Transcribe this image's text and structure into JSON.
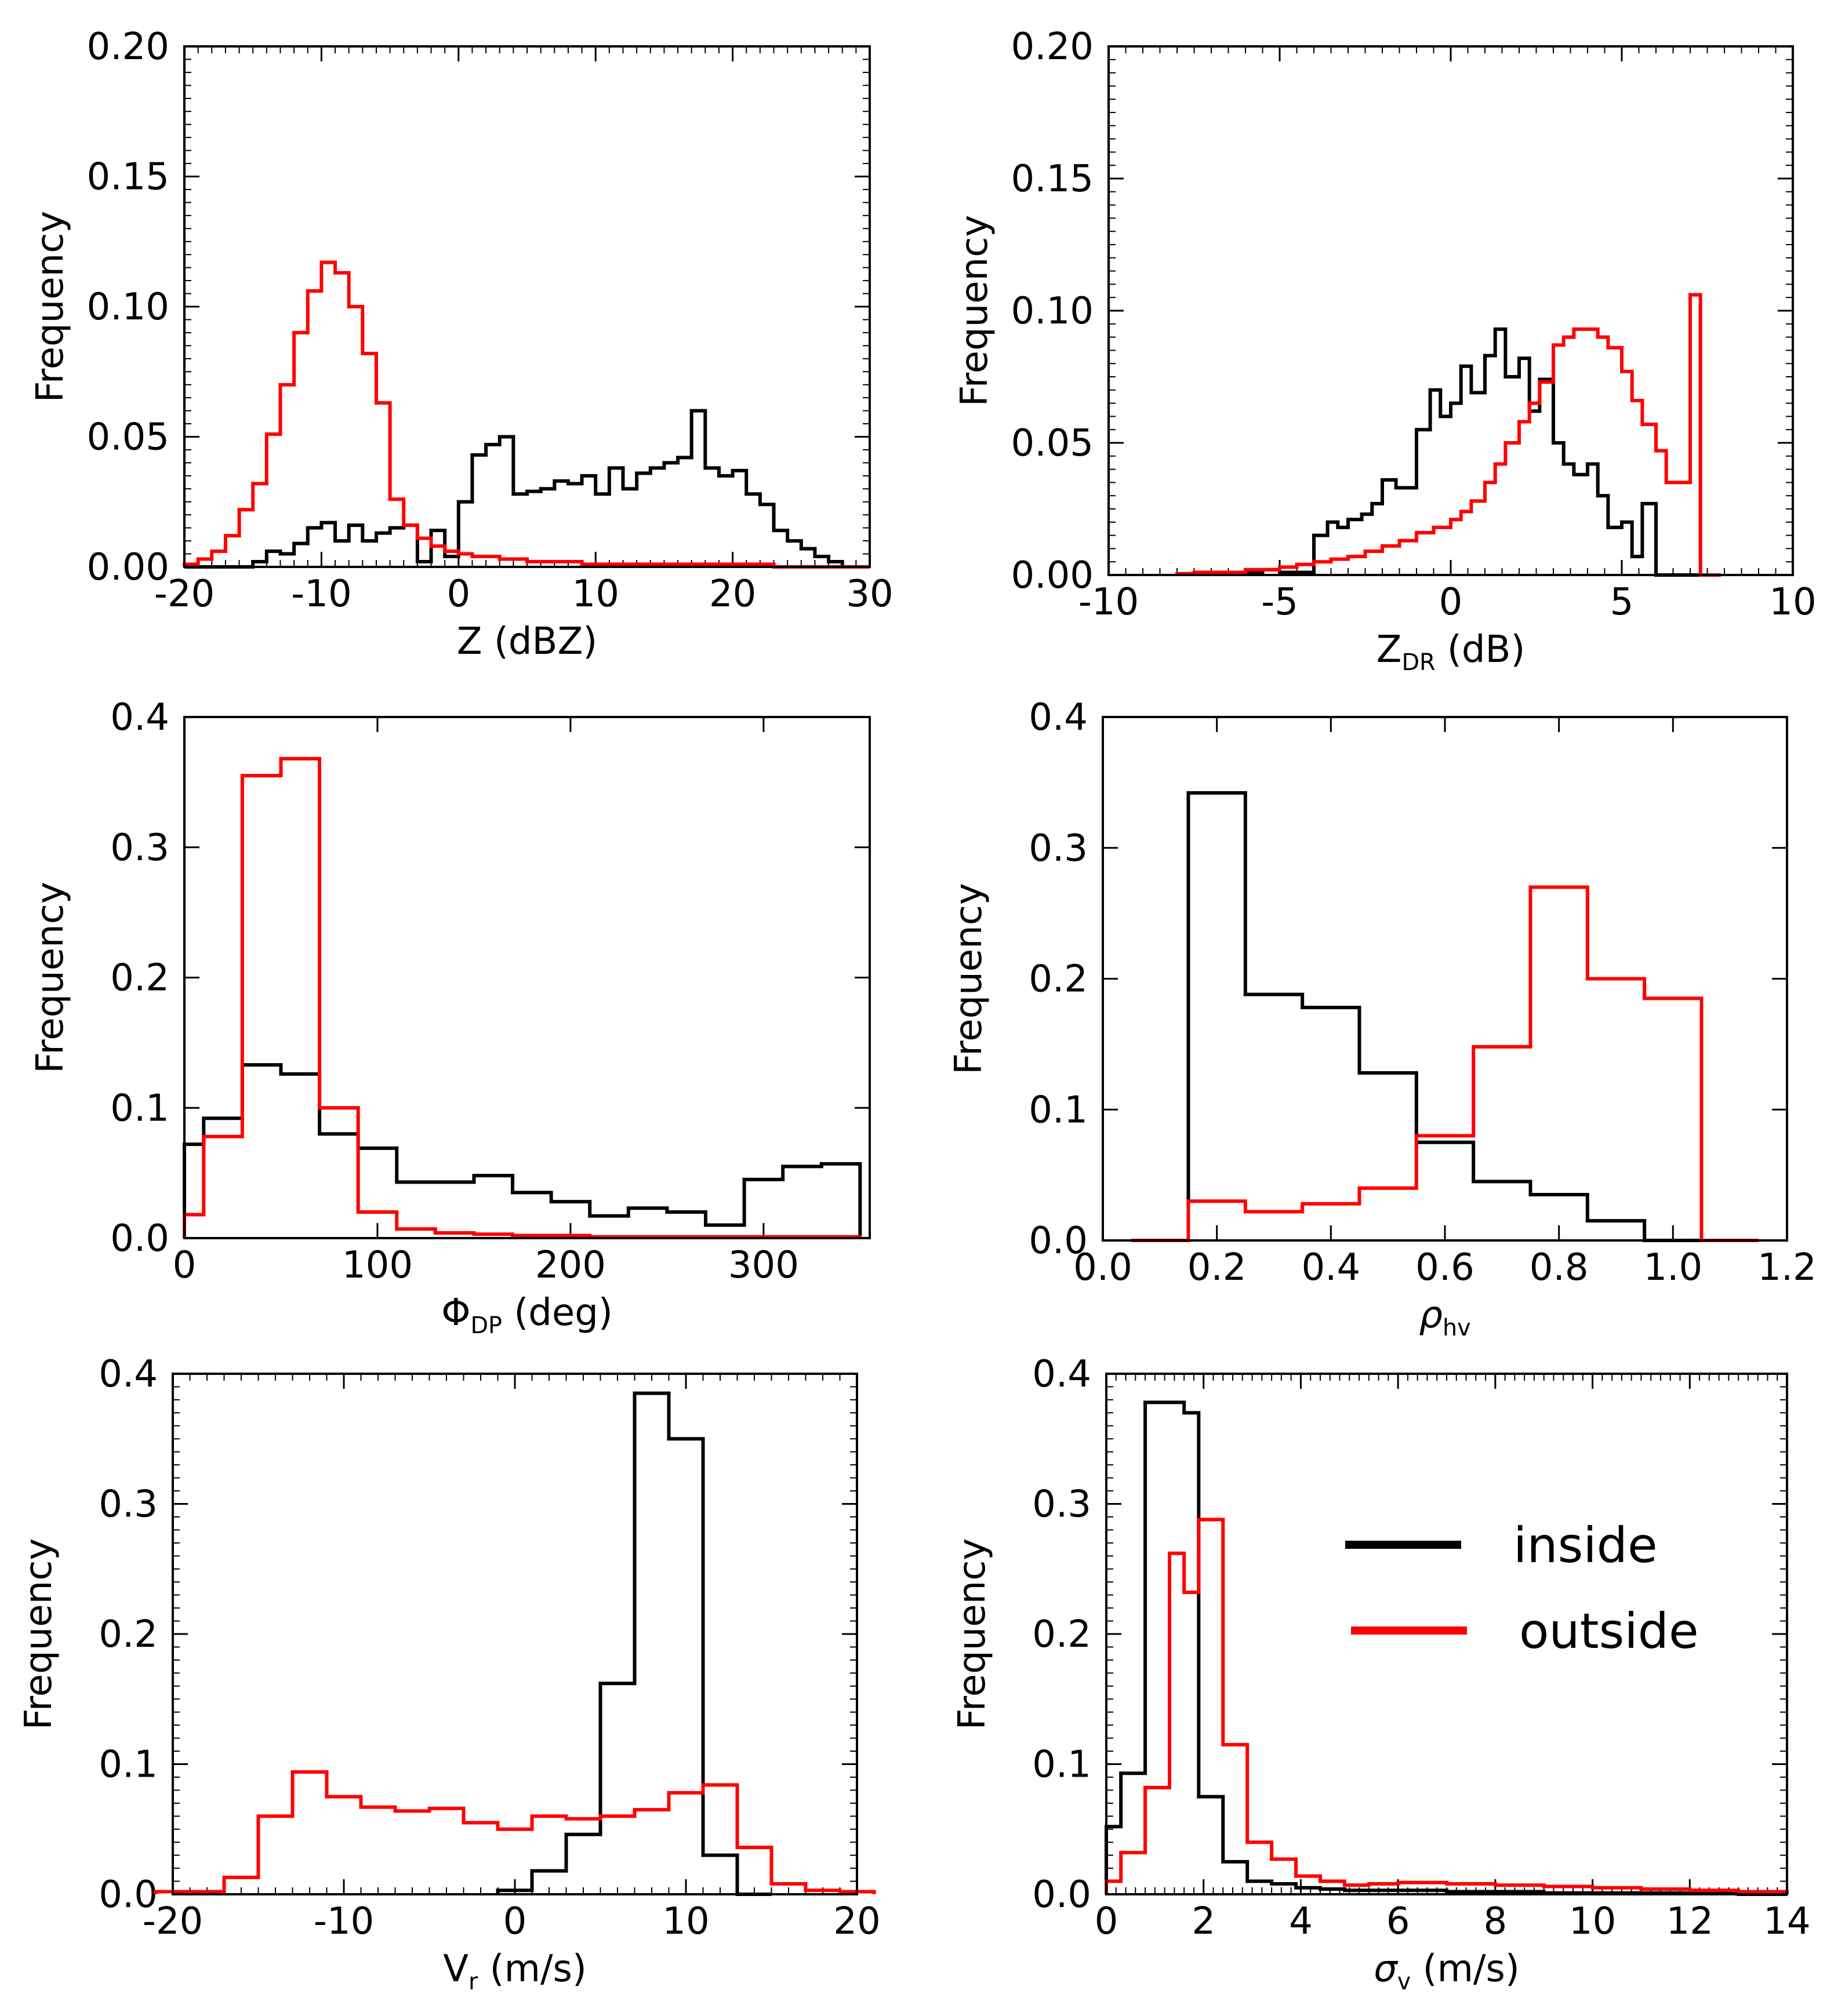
{
  "colors": {
    "inside": "#000000",
    "outside": "#ff0000"
  },
  "legend": {
    "inside_label": "inside",
    "outside_label": "outside",
    "position": "upper-right of bottom-right panel"
  },
  "chart_data": [
    {
      "id": "z",
      "type": "step-histogram",
      "xlabel": {
        "main": "Z (dBZ)",
        "sub": ""
      },
      "ylabel": "Frequency",
      "xlim": [
        -20,
        30
      ],
      "ylim": [
        0,
        0.2
      ],
      "xticks": [
        -20,
        -10,
        0,
        10,
        20,
        30
      ],
      "yticks": [
        0.0,
        0.05,
        0.1,
        0.15,
        0.2
      ],
      "ytick_labels": [
        "0.00",
        "0.05",
        "0.10",
        "0.15",
        "0.20"
      ],
      "minor_ticks": true,
      "series": [
        {
          "name": "inside",
          "color": "#000000",
          "edges": [
            -20,
            -19,
            -18,
            -17,
            -16,
            -15,
            -14,
            -13,
            -12,
            -11,
            -10,
            -9,
            -8,
            -7,
            -6,
            -5,
            -4,
            -3,
            -2,
            -1,
            0,
            1,
            2,
            3,
            4,
            5,
            6,
            7,
            8,
            9,
            10,
            11,
            12,
            13,
            14,
            15,
            16,
            17,
            18,
            19,
            20,
            21,
            22,
            23,
            24,
            25,
            26,
            27,
            28,
            29,
            30
          ],
          "values": [
            0,
            0,
            0,
            0,
            0,
            0.002,
            0.006,
            0.005,
            0.009,
            0.015,
            0.017,
            0.01,
            0.016,
            0.01,
            0.013,
            0.015,
            0.016,
            0.002,
            0.014,
            0.004,
            0.025,
            0.043,
            0.047,
            0.05,
            0.028,
            0.029,
            0.03,
            0.033,
            0.032,
            0.035,
            0.028,
            0.038,
            0.03,
            0.036,
            0.038,
            0.04,
            0.042,
            0.06,
            0.038,
            0.035,
            0.037,
            0.028,
            0.024,
            0.014,
            0.01,
            0.007,
            0.004,
            0.002,
            0,
            0,
            0
          ]
        },
        {
          "name": "outside",
          "color": "#ff0000",
          "edges": [
            -20,
            -19,
            -18,
            -17,
            -16,
            -15,
            -14,
            -13,
            -12,
            -11,
            -10,
            -9,
            -8,
            -7,
            -6,
            -5,
            -4,
            -3,
            -2,
            -1,
            0,
            1,
            2,
            3,
            4,
            5,
            6,
            7,
            8,
            9,
            10,
            11,
            12,
            13,
            14,
            15,
            16,
            17,
            18,
            19,
            20,
            21,
            22,
            23,
            24,
            25,
            26,
            27,
            28,
            29,
            30
          ],
          "values": [
            0.001,
            0.003,
            0.006,
            0.012,
            0.022,
            0.032,
            0.051,
            0.07,
            0.09,
            0.106,
            0.117,
            0.113,
            0.1,
            0.082,
            0.063,
            0.026,
            0.016,
            0.011,
            0.008,
            0.006,
            0.005,
            0.004,
            0.004,
            0.003,
            0.003,
            0.002,
            0.002,
            0.002,
            0.002,
            0.001,
            0.001,
            0.001,
            0.001,
            0.001,
            0.001,
            0.001,
            0.001,
            0.001,
            0.001,
            0.001,
            0.001,
            0.001,
            0.001,
            0,
            0,
            0,
            0,
            0,
            0,
            0
          ]
        }
      ]
    },
    {
      "id": "zdr",
      "type": "step-histogram",
      "xlabel": {
        "main": "Z",
        "sub": "DR",
        "after": " (dB)"
      },
      "ylabel": "Frequency",
      "xlim": [
        -10,
        10
      ],
      "ylim": [
        0,
        0.2
      ],
      "xticks": [
        -10,
        -5,
        0,
        5,
        10
      ],
      "yticks": [
        0.0,
        0.05,
        0.1,
        0.15,
        0.2
      ],
      "ytick_labels": [
        "0.00",
        "0.05",
        "0.10",
        "0.15",
        "0.20"
      ],
      "minor_ticks": true,
      "series": [
        {
          "name": "inside",
          "color": "#000000",
          "edges": [
            -6,
            -5.5,
            -5,
            -4.6,
            -4.3,
            -4,
            -3.6,
            -3.3,
            -3,
            -2.6,
            -2.3,
            -2,
            -1.6,
            -1.3,
            -1,
            -0.6,
            -0.3,
            0,
            0.3,
            0.6,
            1,
            1.3,
            1.6,
            2,
            2.3,
            2.6,
            3,
            3.3,
            3.6,
            4,
            4.3,
            4.6,
            5,
            5.3,
            5.6,
            6,
            6.3,
            6.6,
            7,
            7.3,
            7.6
          ],
          "values": [
            0.001,
            0.002,
            0.001,
            0.001,
            0.001,
            0.015,
            0.02,
            0.018,
            0.021,
            0.023,
            0.027,
            0.036,
            0.033,
            0.033,
            0.055,
            0.07,
            0.06,
            0.065,
            0.079,
            0.069,
            0.083,
            0.093,
            0.075,
            0.082,
            0.062,
            0.074,
            0.05,
            0.042,
            0.038,
            0.042,
            0.03,
            0.018,
            0.02,
            0.007,
            0.027,
            0.0,
            0,
            0,
            0,
            0
          ]
        },
        {
          "name": "outside",
          "color": "#ff0000",
          "edges": [
            -8,
            -7.5,
            -7,
            -6.5,
            -6,
            -5.5,
            -5,
            -4.5,
            -4,
            -3.5,
            -3,
            -2.5,
            -2,
            -1.5,
            -1,
            -0.5,
            0,
            0.3,
            0.6,
            1,
            1.3,
            1.6,
            2,
            2.3,
            2.6,
            3,
            3.3,
            3.6,
            4,
            4.3,
            4.6,
            5,
            5.3,
            5.6,
            6,
            6.3,
            6.6,
            7,
            7.3,
            7.6,
            7.9
          ],
          "values": [
            0.0005,
            0.001,
            0.001,
            0.001,
            0.002,
            0.002,
            0.003,
            0.004,
            0.005,
            0.006,
            0.007,
            0.009,
            0.011,
            0.013,
            0.016,
            0.018,
            0.021,
            0.024,
            0.028,
            0.035,
            0.042,
            0.05,
            0.058,
            0.065,
            0.073,
            0.087,
            0.09,
            0.093,
            0.093,
            0.09,
            0.086,
            0.077,
            0.066,
            0.057,
            0.047,
            0.035,
            0.035,
            0.106,
            0.0,
            0
          ]
        }
      ]
    },
    {
      "id": "phidp",
      "type": "step-histogram",
      "xlabel": {
        "main": "Φ",
        "sub": "DP",
        "after": " (deg)"
      },
      "ylabel": "Frequency",
      "xlim": [
        0,
        355
      ],
      "ylim": [
        0,
        0.4
      ],
      "xticks": [
        0,
        100,
        200,
        300
      ],
      "yticks": [
        0.0,
        0.1,
        0.2,
        0.3,
        0.4
      ],
      "ytick_labels": [
        "0.0",
        "0.1",
        "0.2",
        "0.3",
        "0.4"
      ],
      "minor_ticks": false,
      "series": [
        {
          "name": "inside",
          "color": "#000000",
          "edges": [
            0,
            10,
            30,
            50,
            70,
            90,
            110,
            130,
            150,
            170,
            190,
            210,
            230,
            250,
            270,
            290,
            310,
            330,
            350
          ],
          "values": [
            0.072,
            0.092,
            0.133,
            0.126,
            0.08,
            0.069,
            0.043,
            0.043,
            0.048,
            0.035,
            0.028,
            0.017,
            0.023,
            0.02,
            0.01,
            0.045,
            0.055,
            0.057
          ]
        },
        {
          "name": "outside",
          "color": "#ff0000",
          "edges": [
            0,
            10,
            30,
            50,
            70,
            90,
            110,
            130,
            150,
            170,
            190,
            210,
            230,
            250,
            270,
            290,
            310,
            330,
            350
          ],
          "values": [
            0.018,
            0.078,
            0.355,
            0.368,
            0.1,
            0.02,
            0.007,
            0.004,
            0.003,
            0.002,
            0.002,
            0.001,
            0.001,
            0.001,
            0.001,
            0.001,
            0.001,
            0.001
          ]
        }
      ]
    },
    {
      "id": "rhohv",
      "type": "step-histogram",
      "xlabel": {
        "main": "ρ",
        "sub": "hv",
        "italic": true,
        "after": ""
      },
      "ylabel": "Frequency",
      "xlim": [
        0,
        1.2
      ],
      "ylim": [
        0,
        0.4
      ],
      "xticks": [
        0.0,
        0.2,
        0.4,
        0.6,
        0.8,
        1.0,
        1.2
      ],
      "xtick_labels": [
        "0.0",
        "0.2",
        "0.4",
        "0.6",
        "0.8",
        "1.0",
        "1.2"
      ],
      "yticks": [
        0.0,
        0.1,
        0.2,
        0.3,
        0.4
      ],
      "ytick_labels": [
        "0.0",
        "0.1",
        "0.2",
        "0.3",
        "0.4"
      ],
      "minor_ticks": false,
      "series": [
        {
          "name": "inside",
          "color": "#000000",
          "edges": [
            0.15,
            0.25,
            0.35,
            0.45,
            0.55,
            0.65,
            0.75,
            0.85,
            0.95,
            1.05
          ],
          "values": [
            0.342,
            0.188,
            0.178,
            0.128,
            0.075,
            0.045,
            0.035,
            0.015,
            0.0
          ]
        },
        {
          "name": "outside",
          "color": "#ff0000",
          "edges": [
            0.05,
            0.15,
            0.25,
            0.35,
            0.45,
            0.55,
            0.65,
            0.75,
            0.85,
            0.95,
            1.05,
            1.15
          ],
          "values": [
            0.0,
            0.03,
            0.022,
            0.028,
            0.04,
            0.08,
            0.148,
            0.27,
            0.2,
            0.185,
            0.0
          ]
        }
      ]
    },
    {
      "id": "vr",
      "type": "step-histogram",
      "xlabel": {
        "main": "V",
        "sub": "r",
        "after": " (m/s)"
      },
      "ylabel": "Frequency",
      "xlim": [
        -20,
        20
      ],
      "ylim": [
        0,
        0.4
      ],
      "xticks": [
        -20,
        -10,
        0,
        10,
        20
      ],
      "yticks": [
        0.0,
        0.1,
        0.2,
        0.3,
        0.4
      ],
      "ytick_labels": [
        "0.0",
        "0.1",
        "0.2",
        "0.3",
        "0.4"
      ],
      "minor_ticks": true,
      "series": [
        {
          "name": "inside",
          "color": "#000000",
          "edges": [
            -1,
            1,
            3,
            5,
            7,
            9,
            11,
            13,
            15
          ],
          "values": [
            0.003,
            0.018,
            0.046,
            0.162,
            0.385,
            0.35,
            0.03,
            0.0
          ]
        },
        {
          "name": "outside",
          "color": "#ff0000",
          "edges": [
            -21,
            -19,
            -17,
            -15,
            -13,
            -11,
            -9,
            -7,
            -5,
            -3,
            -1,
            1,
            3,
            5,
            7,
            9,
            11,
            13,
            15,
            17,
            19,
            21
          ],
          "values": [
            0.002,
            0.002,
            0.013,
            0.06,
            0.094,
            0.075,
            0.067,
            0.064,
            0.066,
            0.055,
            0.05,
            0.06,
            0.058,
            0.06,
            0.065,
            0.078,
            0.084,
            0.036,
            0.008,
            0.003,
            0.002
          ]
        }
      ]
    },
    {
      "id": "sigmav",
      "type": "step-histogram",
      "xlabel": {
        "main": "σ",
        "sub": "v",
        "italic": true,
        "after": " (m/s)"
      },
      "ylabel": "Frequency",
      "xlim": [
        0,
        14
      ],
      "ylim": [
        0,
        0.4
      ],
      "xticks": [
        0,
        2,
        4,
        6,
        8,
        10,
        12,
        14
      ],
      "yticks": [
        0.0,
        0.1,
        0.2,
        0.3,
        0.4
      ],
      "ytick_labels": [
        "0.0",
        "0.1",
        "0.2",
        "0.3",
        "0.4"
      ],
      "minor_ticks": true,
      "series": [
        {
          "name": "inside",
          "color": "#000000",
          "edges": [
            0,
            0.3,
            0.8,
            1.6,
            1.9,
            2.4,
            2.9,
            3.4,
            3.9,
            4.4,
            4.9,
            5.4,
            6,
            7,
            8,
            9,
            10,
            11,
            12,
            13,
            14
          ],
          "values": [
            0.052,
            0.093,
            0.378,
            0.37,
            0.075,
            0.025,
            0.01,
            0.008,
            0.005,
            0.004,
            0.003,
            0.003,
            0.003,
            0.002,
            0.002,
            0.001,
            0.001,
            0.001,
            0.001,
            0.0
          ]
        },
        {
          "name": "outside",
          "color": "#ff0000",
          "edges": [
            0,
            0.3,
            0.8,
            1.3,
            1.6,
            1.9,
            2.4,
            2.9,
            3.4,
            3.9,
            4.4,
            4.9,
            5.4,
            6,
            7,
            8,
            9,
            10,
            11,
            12,
            13,
            14
          ],
          "values": [
            0.01,
            0.032,
            0.082,
            0.262,
            0.232,
            0.288,
            0.115,
            0.04,
            0.027,
            0.014,
            0.01,
            0.007,
            0.008,
            0.009,
            0.008,
            0.007,
            0.006,
            0.005,
            0.004,
            0.003,
            0.002
          ]
        }
      ]
    }
  ]
}
